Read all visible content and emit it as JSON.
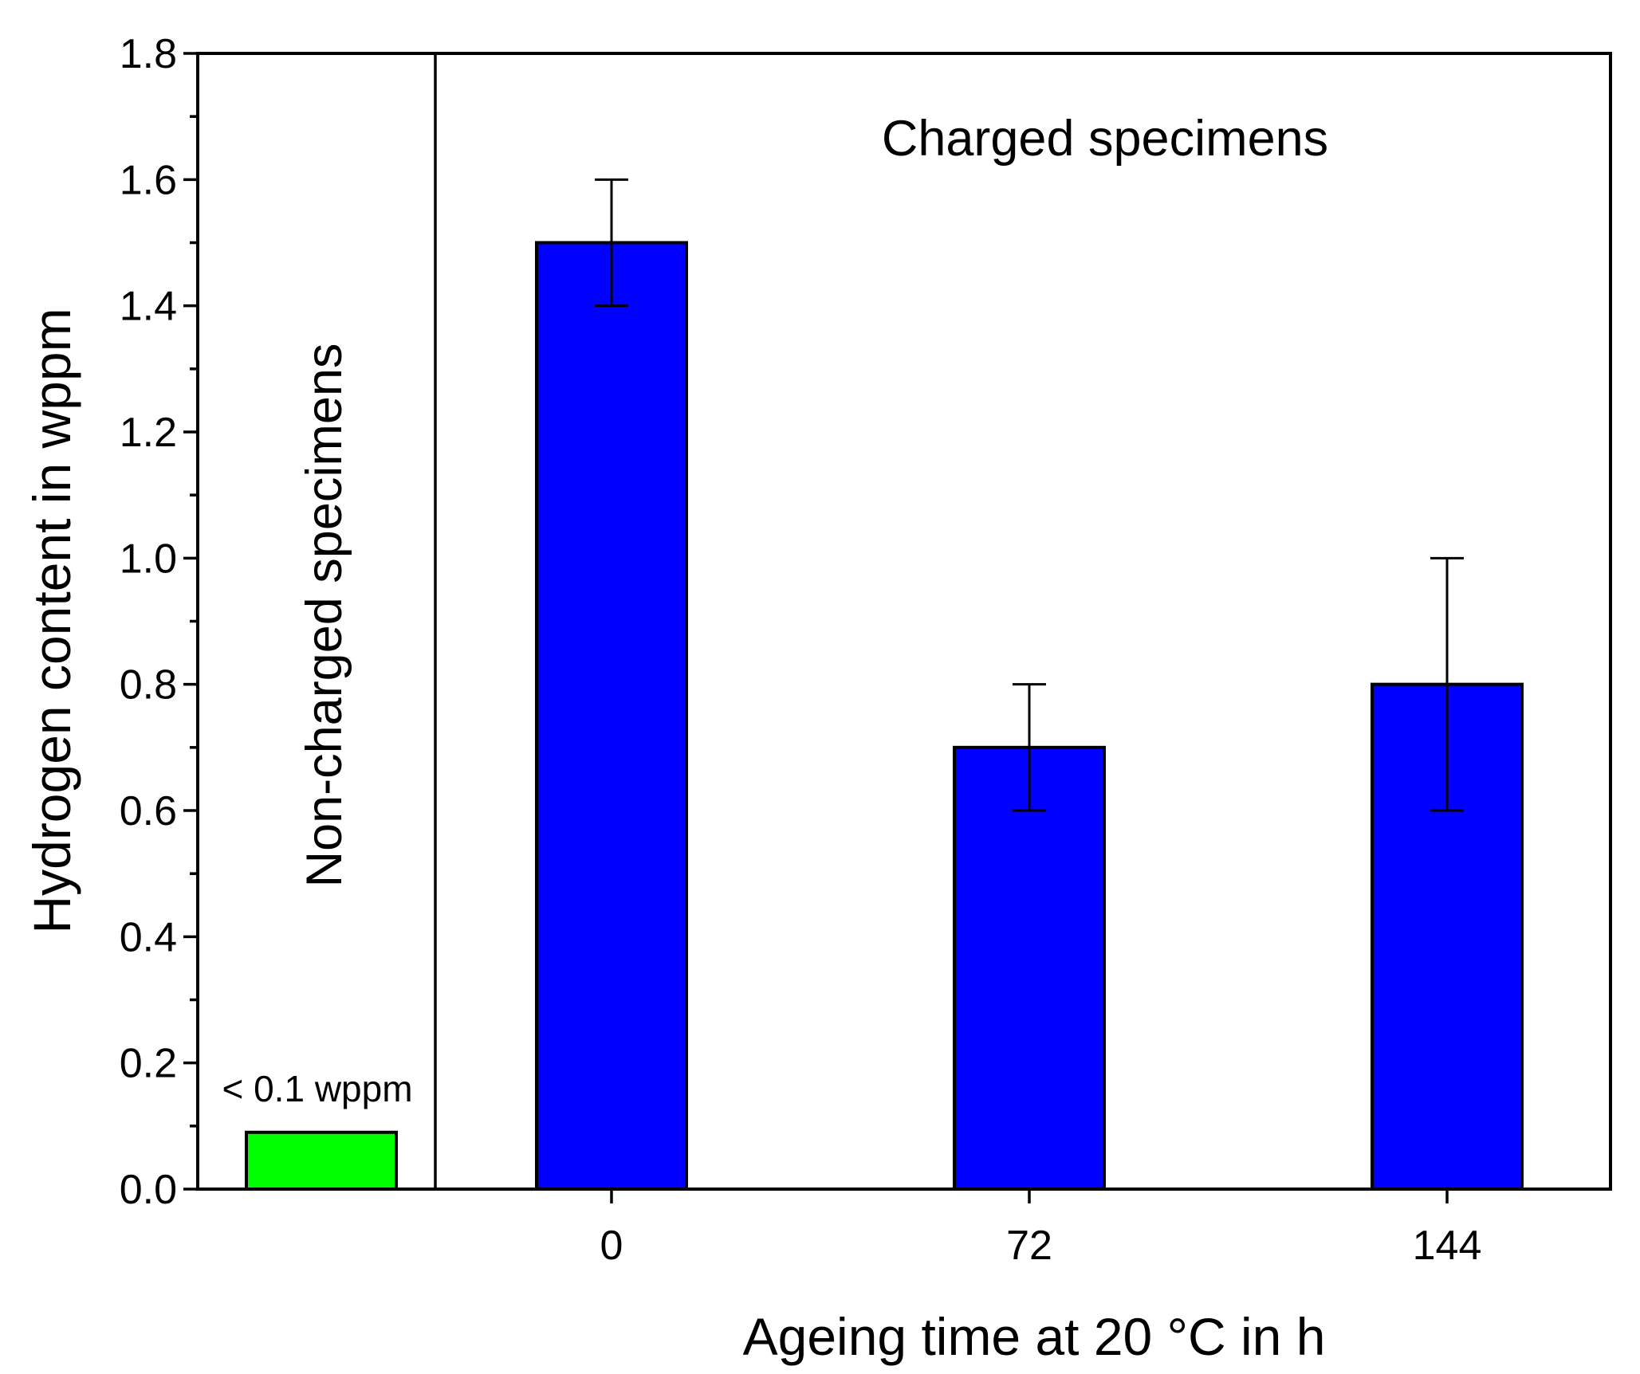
{
  "chart_data": {
    "type": "bar",
    "xlabel": "Ageing time at 20 °C in h",
    "ylabel": "Hydrogen content in wppm",
    "ylim": [
      0,
      1.8
    ],
    "yticks": [
      "0.0",
      "0.2",
      "0.4",
      "0.6",
      "0.8",
      "1.0",
      "1.2",
      "1.4",
      "1.6",
      "1.8"
    ],
    "grid": false,
    "regions": [
      {
        "label": "Non-charged specimens",
        "bars": [
          {
            "category": "",
            "value": 0.09,
            "color": "#00ff00",
            "annotation": "< 0.1 wppm"
          }
        ]
      },
      {
        "label": "Charged specimens",
        "bars": [
          {
            "category": "0",
            "value": 1.5,
            "error_low": 1.4,
            "error_high": 1.6,
            "color": "#0000ff"
          },
          {
            "category": "72",
            "value": 0.7,
            "error_low": 0.6,
            "error_high": 0.8,
            "color": "#0000ff"
          },
          {
            "category": "144",
            "value": 0.8,
            "error_low": 0.6,
            "error_high": 1.0,
            "color": "#0000ff"
          }
        ]
      }
    ]
  }
}
